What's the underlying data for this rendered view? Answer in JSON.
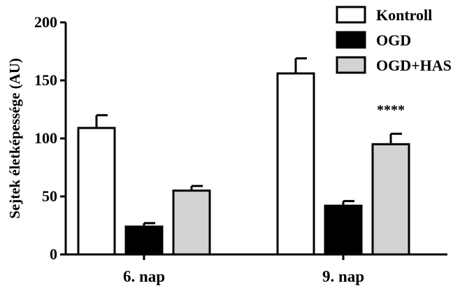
{
  "chart_data": {
    "type": "bar",
    "ylabel": "Sejtek életképessége (AU)",
    "xlabel": "",
    "ylim": [
      0,
      200
    ],
    "yticks": [
      "0",
      "50",
      "100",
      "150",
      "200"
    ],
    "categories": [
      "6. nap",
      "9. nap"
    ],
    "legend_position": "top-right",
    "series": [
      {
        "name": "Kontroll",
        "values": [
          109,
          156
        ],
        "errors": [
          11,
          13
        ],
        "color": "#ffffff"
      },
      {
        "name": "OGD",
        "values": [
          24,
          42
        ],
        "errors": [
          3,
          4
        ],
        "color": "#000000"
      },
      {
        "name": "OGD+HAS",
        "values": [
          55,
          95
        ],
        "errors": [
          4,
          9
        ],
        "color": "#d3d3d3"
      }
    ],
    "annotations": [
      {
        "text": "****",
        "category": "9. nap",
        "series": "OGD+HAS"
      }
    ]
  }
}
